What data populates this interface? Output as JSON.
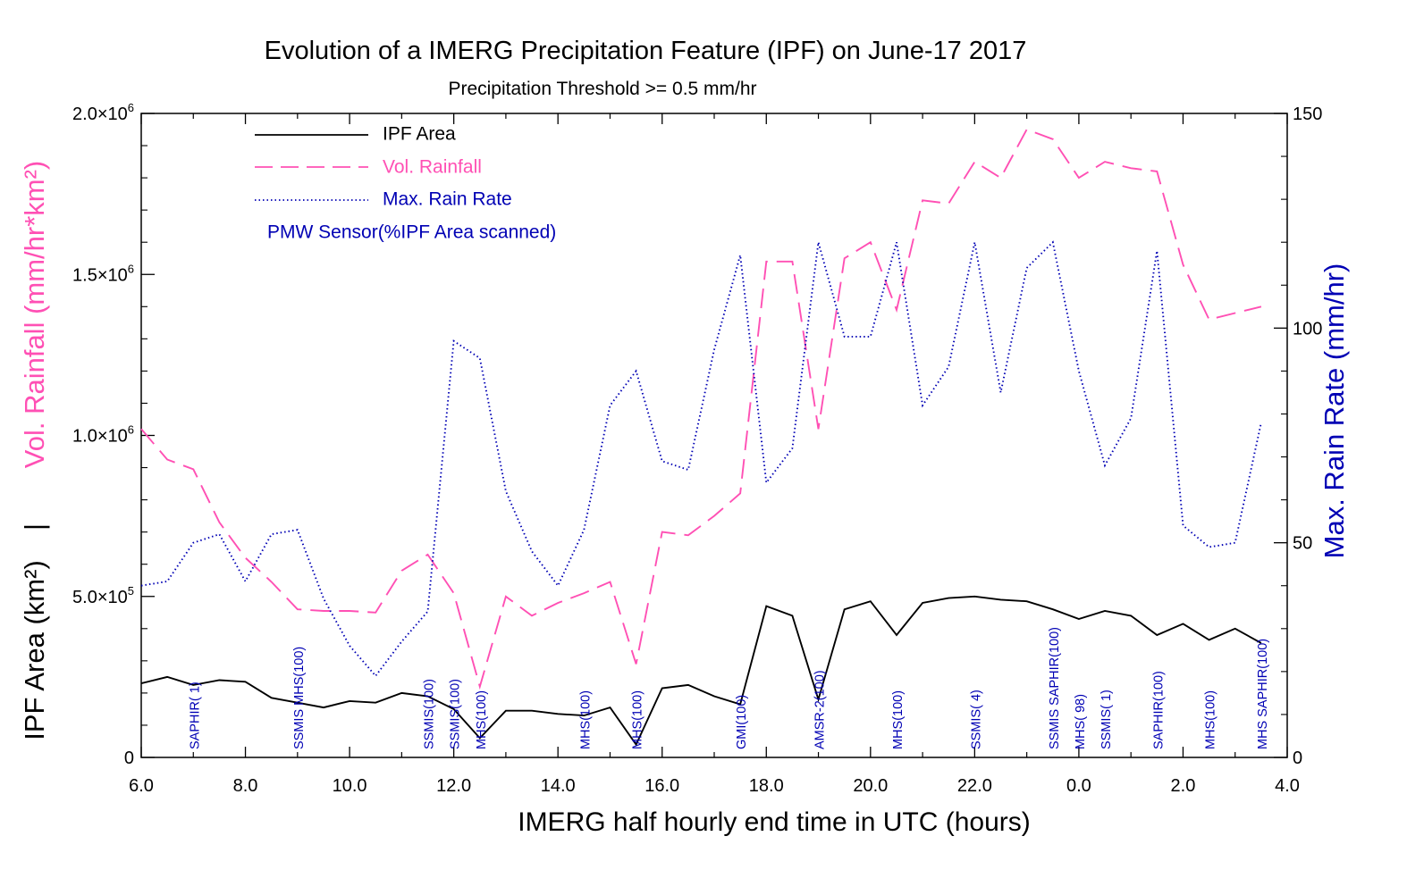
{
  "chart_data": {
    "type": "line",
    "title": "Evolution of a IMERG Precipitation Feature (IPF) on June-17 2017",
    "subtitle": "Precipitation Threshold >= 0.5 mm/hr",
    "xlabel": "IMERG half hourly end time in UTC (hours)",
    "ylabel_left_top": "Vol. Rainfall (mm/hr*km²)",
    "ylabel_left_sep": "|",
    "ylabel_left_bottom": "IPF Area (km²)",
    "ylabel_right": "Max. Rain Rate (mm/hr)",
    "x_ticks": [
      "6.0",
      "8.0",
      "10.0",
      "12.0",
      "14.0",
      "16.0",
      "18.0",
      "20.0",
      "22.0",
      "0.0",
      "2.0",
      "4.0"
    ],
    "x_tick_positions": [
      6,
      8,
      10,
      12,
      14,
      16,
      18,
      20,
      22,
      24,
      26,
      28
    ],
    "xlim": [
      6,
      28
    ],
    "ylim_left": [
      0,
      2000000
    ],
    "ylim_right": [
      0,
      150
    ],
    "y_left_ticks": [
      {
        "value": 0,
        "mantissa": "0",
        "exp": ""
      },
      {
        "value": 500000,
        "mantissa": "5.0×10",
        "exp": "5"
      },
      {
        "value": 1000000,
        "mantissa": "1.0×10",
        "exp": "6"
      },
      {
        "value": 1500000,
        "mantissa": "1.5×10",
        "exp": "6"
      },
      {
        "value": 2000000,
        "mantissa": "2.0×10",
        "exp": "6"
      }
    ],
    "y_right_ticks": [
      "0",
      "50",
      "100",
      "150"
    ],
    "y_right_tick_values": [
      0,
      50,
      100,
      150
    ],
    "x": [
      6.0,
      6.5,
      7.0,
      7.5,
      8.0,
      8.5,
      9.0,
      9.5,
      10.0,
      10.5,
      11.0,
      11.5,
      12.0,
      12.5,
      13.0,
      13.5,
      14.0,
      14.5,
      15.0,
      15.5,
      16.0,
      16.5,
      17.0,
      17.5,
      18.0,
      18.5,
      19.0,
      19.5,
      20.0,
      20.5,
      21.0,
      21.5,
      22.0,
      22.5,
      23.0,
      23.5,
      24.0,
      24.5,
      25.0,
      25.5,
      26.0,
      26.5,
      27.0,
      27.5
    ],
    "series": [
      {
        "name": "IPF Area",
        "axis": "left",
        "color": "#000000",
        "dash": "solid",
        "values": [
          230000,
          250000,
          225000,
          240000,
          235000,
          185000,
          170000,
          155000,
          175000,
          170000,
          200000,
          190000,
          150000,
          60000,
          145000,
          145000,
          135000,
          130000,
          155000,
          40000,
          215000,
          225000,
          190000,
          165000,
          470000,
          440000,
          180000,
          460000,
          485000,
          380000,
          480000,
          495000,
          500000,
          490000,
          485000,
          460000,
          430000,
          455000,
          440000,
          380000,
          415000,
          365000,
          400000,
          355000
        ]
      },
      {
        "name": "Vol. Rainfall",
        "axis": "left",
        "color": "#ff50b4",
        "dash": "long",
        "values": [
          1020000,
          925000,
          895000,
          730000,
          620000,
          545000,
          460000,
          455000,
          455000,
          450000,
          580000,
          630000,
          510000,
          220000,
          500000,
          440000,
          480000,
          510000,
          545000,
          290000,
          700000,
          690000,
          750000,
          820000,
          1540000,
          1540000,
          1020000,
          1550000,
          1600000,
          1390000,
          1730000,
          1720000,
          1850000,
          1800000,
          1950000,
          1920000,
          1800000,
          1850000,
          1830000,
          1820000,
          1530000,
          1360000,
          1380000,
          1400000
        ]
      },
      {
        "name": "Max. Rain Rate",
        "axis": "right",
        "color": "#0000b4",
        "dash": "dotted",
        "values": [
          40,
          41,
          50,
          52,
          41,
          52,
          53,
          37,
          26,
          19,
          27,
          34,
          97,
          93,
          62,
          48,
          40,
          53,
          82,
          90,
          69,
          67,
          95,
          117,
          64,
          72,
          120,
          98,
          98,
          120,
          82,
          91,
          120,
          85,
          114,
          120,
          90,
          68,
          79,
          118,
          54,
          49,
          50,
          78
        ]
      }
    ],
    "legend": {
      "placement": "top-left",
      "items": [
        "IPF Area",
        "Vol. Rainfall",
        "Max. Rain Rate"
      ],
      "sensor_header": "PMW Sensor(%IPF Area scanned)"
    },
    "sensor_labels": [
      {
        "x": 7.0,
        "label": "SAPHIR(  1)"
      },
      {
        "x": 9.0,
        "label": "SSMIS MHS(100)"
      },
      {
        "x": 11.5,
        "label": "SSMIS(100)"
      },
      {
        "x": 12.0,
        "label": "SSMIS(100)"
      },
      {
        "x": 12.5,
        "label": "MHS(100)"
      },
      {
        "x": 14.5,
        "label": "MHS(100)"
      },
      {
        "x": 15.5,
        "label": "MHS(100)"
      },
      {
        "x": 17.5,
        "label": "GMI(100)"
      },
      {
        "x": 19.0,
        "label": "AMSR-2(100)"
      },
      {
        "x": 20.5,
        "label": "MHS(100)"
      },
      {
        "x": 22.0,
        "label": "SSMIS(  4)"
      },
      {
        "x": 23.5,
        "label": "SSMIS SAPHIR(100)"
      },
      {
        "x": 24.0,
        "label": "MHS( 98)"
      },
      {
        "x": 24.5,
        "label": "SSMIS(  1)"
      },
      {
        "x": 25.5,
        "label": "SAPHIR(100)"
      },
      {
        "x": 26.5,
        "label": "MHS(100)"
      },
      {
        "x": 27.5,
        "label": "MHS SAPHIR(100)"
      }
    ],
    "grid": false
  }
}
